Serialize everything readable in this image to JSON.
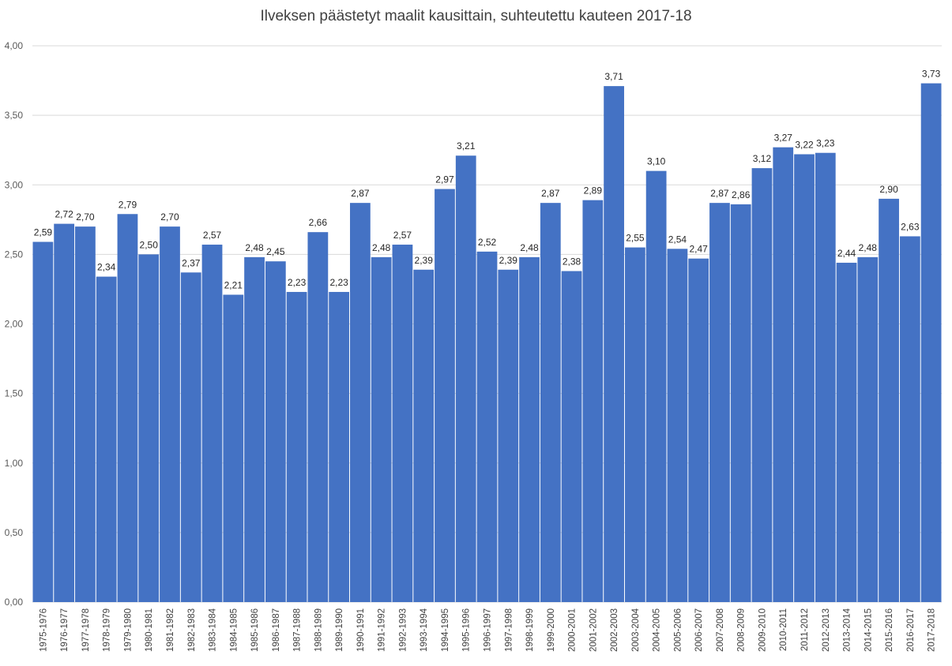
{
  "chart_data": {
    "type": "bar",
    "title": "Ilveksen päästetyt maalit kausittain, suhteutettu kauteen 2017-18",
    "xlabel": "",
    "ylabel": "",
    "ylim": [
      0,
      4
    ],
    "y_ticks": [
      "0,00",
      "0,50",
      "1,00",
      "1,50",
      "2,00",
      "2,50",
      "3,00",
      "3,50",
      "4,00"
    ],
    "grid": true,
    "legend": "none",
    "bar_color": "#4472c4",
    "categories": [
      "1975-1976",
      "1976-1977",
      "1977-1978",
      "1978-1979",
      "1979-1980",
      "1980-1981",
      "1981-1982",
      "1982-1983",
      "1983-1984",
      "1984-1985",
      "1985-1986",
      "1986-1987",
      "1987-1988",
      "1988-1989",
      "1989-1990",
      "1990-1991",
      "1991-1992",
      "1992-1993",
      "1993-1994",
      "1994-1995",
      "1995-1996",
      "1996-1997",
      "1997-1998",
      "1998-1999",
      "1999-2000",
      "2000-2001",
      "2001-2002",
      "2002-2003",
      "2003-2004",
      "2004-2005",
      "2005-2006",
      "2006-2007",
      "2007-2008",
      "2008-2009",
      "2009-2010",
      "2010-2011",
      "2011-2012",
      "2012-2013",
      "2013-2014",
      "2014-2015",
      "2015-2016",
      "2016-2017",
      "2017-2018"
    ],
    "values": [
      2.59,
      2.72,
      2.7,
      2.34,
      2.79,
      2.5,
      2.7,
      2.37,
      2.57,
      2.21,
      2.48,
      2.45,
      2.23,
      2.66,
      2.23,
      2.87,
      2.48,
      2.57,
      2.39,
      2.97,
      3.21,
      2.52,
      2.39,
      2.48,
      2.87,
      2.38,
      2.89,
      3.71,
      2.55,
      3.1,
      2.54,
      2.47,
      2.87,
      2.86,
      3.12,
      3.27,
      3.22,
      3.23,
      2.44,
      2.48,
      2.9,
      2.63,
      3.73
    ],
    "data_labels": [
      "2,59",
      "2,72",
      "2,70",
      "2,34",
      "2,79",
      "2,50",
      "2,70",
      "2,37",
      "2,57",
      "2,21",
      "2,48",
      "2,45",
      "2,23",
      "2,66",
      "2,23",
      "2,87",
      "2,48",
      "2,57",
      "2,39",
      "2,97",
      "3,21",
      "2,52",
      "2,39",
      "2,48",
      "2,87",
      "2,38",
      "2,89",
      "3,71",
      "2,55",
      "3,10",
      "2,54",
      "2,47",
      "2,87",
      "2,86",
      "3,12",
      "3,27",
      "3,22",
      "3,23",
      "2,44",
      "2,48",
      "2,90",
      "2,63",
      "3,73"
    ]
  }
}
